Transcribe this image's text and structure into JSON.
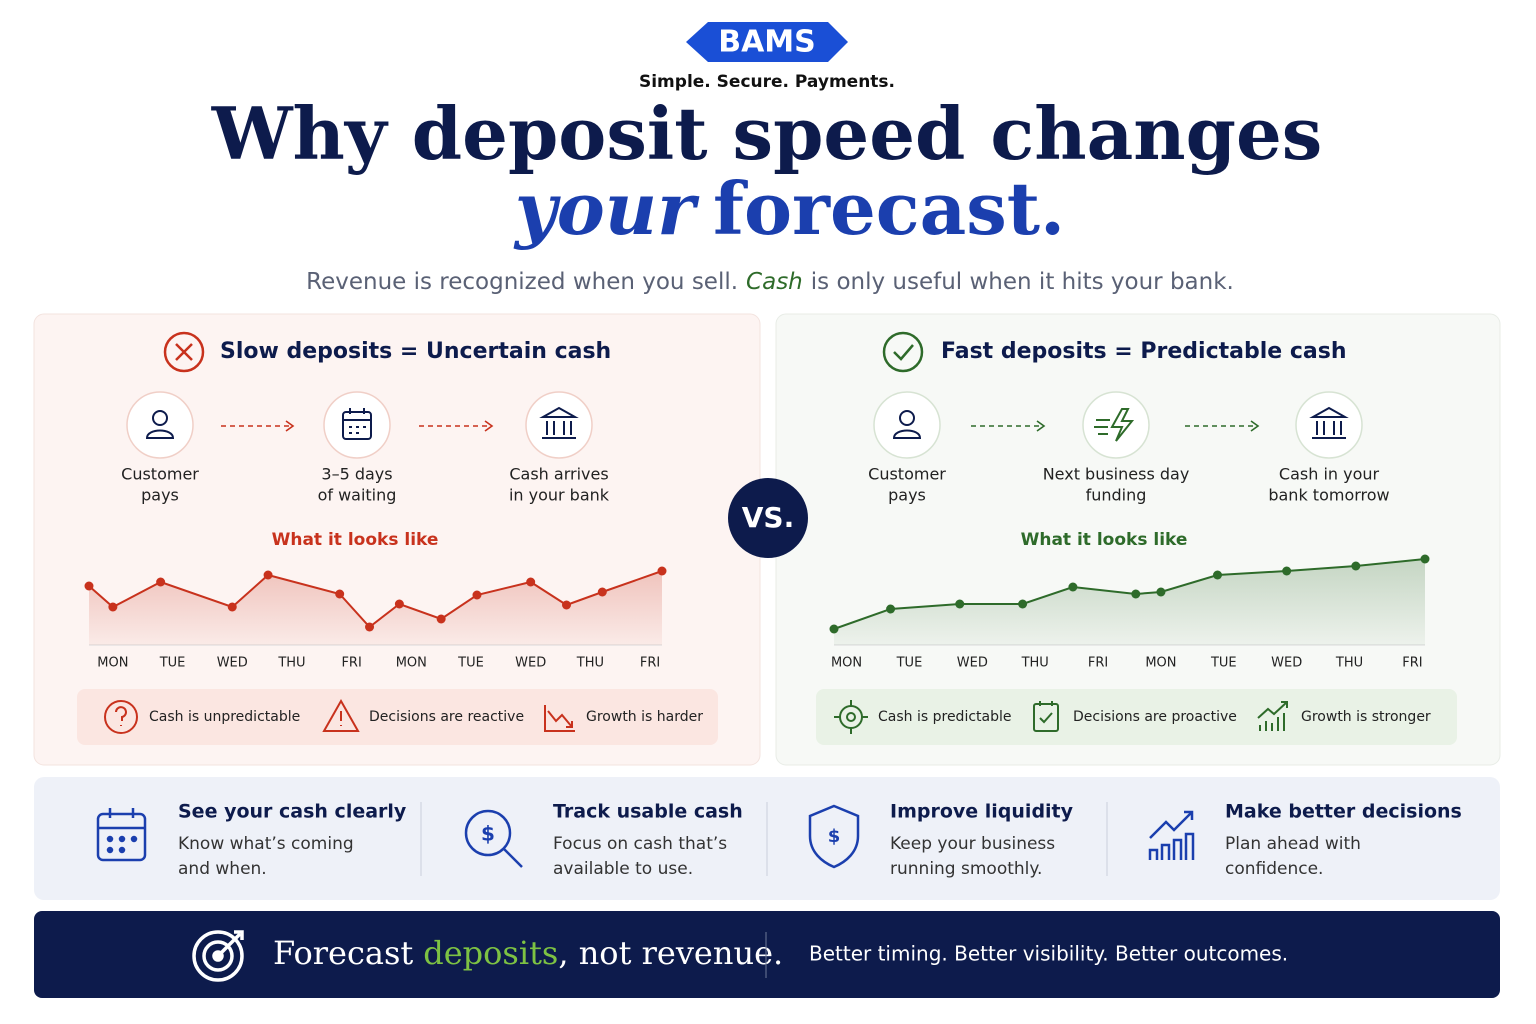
{
  "header": {
    "logo": "BAMS",
    "tagline": "Simple. Secure. Payments.",
    "title_line1": "Why deposit speed changes",
    "title_line2_em": "your",
    "title_line2": "forecast.",
    "subtitle_a": "Revenue is recognized when you sell.",
    "subtitle_em": "Cash",
    "subtitle_b": "is only useful when it hits your bank."
  },
  "vs": "VS.",
  "panels": [
    {
      "heading": "Slow deposits = Uncertain cash",
      "steps": [
        {
          "lines": [
            "Customer",
            "pays"
          ]
        },
        {
          "lines": [
            "3–5 days",
            "of waiting"
          ]
        },
        {
          "lines": [
            "Cash arrives",
            "in your bank"
          ]
        }
      ],
      "badges": [
        "Cash is unpredictable",
        "Decisions are reactive",
        "Growth is harder"
      ]
    },
    {
      "heading": "Fast deposits = Predictable cash",
      "steps": [
        {
          "lines": [
            "Customer",
            "pays"
          ]
        },
        {
          "lines": [
            "Next business day",
            "funding"
          ]
        },
        {
          "lines": [
            "Cash in your",
            "bank tomorrow"
          ]
        }
      ],
      "badges": [
        "Cash is predictable",
        "Decisions are proactive",
        "Growth is stronger"
      ]
    }
  ],
  "chart_data": [
    {
      "type": "line",
      "title": "What it looks like",
      "color": "#c8321d",
      "x": [
        -0.4,
        0.0,
        0.8,
        2.0,
        2.6,
        3.8,
        4.3,
        4.8,
        5.5,
        6.1,
        7.0,
        7.6,
        8.2,
        9.2
      ],
      "series": [
        {
          "color": "#c8321d",
          "values": [
            59,
            38,
            63,
            38,
            70,
            51,
            18,
            41,
            26,
            50,
            63,
            40,
            53,
            74
          ]
        }
      ],
      "xlim": [
        -0.4,
        9.2
      ],
      "ylim": [
        0,
        100
      ],
      "xticks": [
        {
          "value": 0,
          "label": "MON"
        },
        {
          "value": 1,
          "label": "TUE"
        },
        {
          "value": 2,
          "label": "WED"
        },
        {
          "value": 3,
          "label": "THU"
        },
        {
          "value": 4,
          "label": "FRI"
        },
        {
          "value": 5,
          "label": "MON"
        },
        {
          "value": 6,
          "label": "TUE"
        },
        {
          "value": 7,
          "label": "WED"
        },
        {
          "value": 8,
          "label": "THU"
        },
        {
          "value": 9,
          "label": "FRI"
        }
      ]
    },
    {
      "type": "line",
      "title": "What it looks like",
      "color": "#2e6b2a",
      "x": [
        -0.2,
        0.7,
        1.8,
        2.8,
        3.6,
        4.6,
        5.0,
        5.9,
        7.0,
        8.1,
        9.2
      ],
      "series": [
        {
          "color": "#2e6b2a",
          "values": [
            16,
            36,
            41,
            41,
            58,
            51,
            53,
            70,
            74,
            79,
            86
          ]
        }
      ],
      "xlim": [
        -0.2,
        9.2
      ],
      "ylim": [
        0,
        100
      ],
      "xticks": [
        {
          "value": 0,
          "label": "MON"
        },
        {
          "value": 1,
          "label": "TUE"
        },
        {
          "value": 2,
          "label": "WED"
        },
        {
          "value": 3,
          "label": "THU"
        },
        {
          "value": 4,
          "label": "FRI"
        },
        {
          "value": 5,
          "label": "MON"
        },
        {
          "value": 6,
          "label": "TUE"
        },
        {
          "value": 7,
          "label": "WED"
        },
        {
          "value": 8,
          "label": "THU"
        },
        {
          "value": 9,
          "label": "FRI"
        }
      ]
    }
  ],
  "features": [
    {
      "title": "See your cash clearly",
      "lines": [
        "Know what’s coming",
        "and when."
      ]
    },
    {
      "title": "Track usable cash",
      "lines": [
        "Focus on cash that’s",
        "available to use."
      ]
    },
    {
      "title": "Improve liquidity",
      "lines": [
        "Keep your business",
        "running smoothly."
      ]
    },
    {
      "title": "Make better decisions",
      "lines": [
        "Plan ahead with",
        "confidence."
      ]
    }
  ],
  "footer": {
    "slogan_a": "Forecast",
    "slogan_em": "deposits",
    "slogan_b": ", not revenue.",
    "tagline": "Better timing. Better visibility. Better outcomes."
  }
}
